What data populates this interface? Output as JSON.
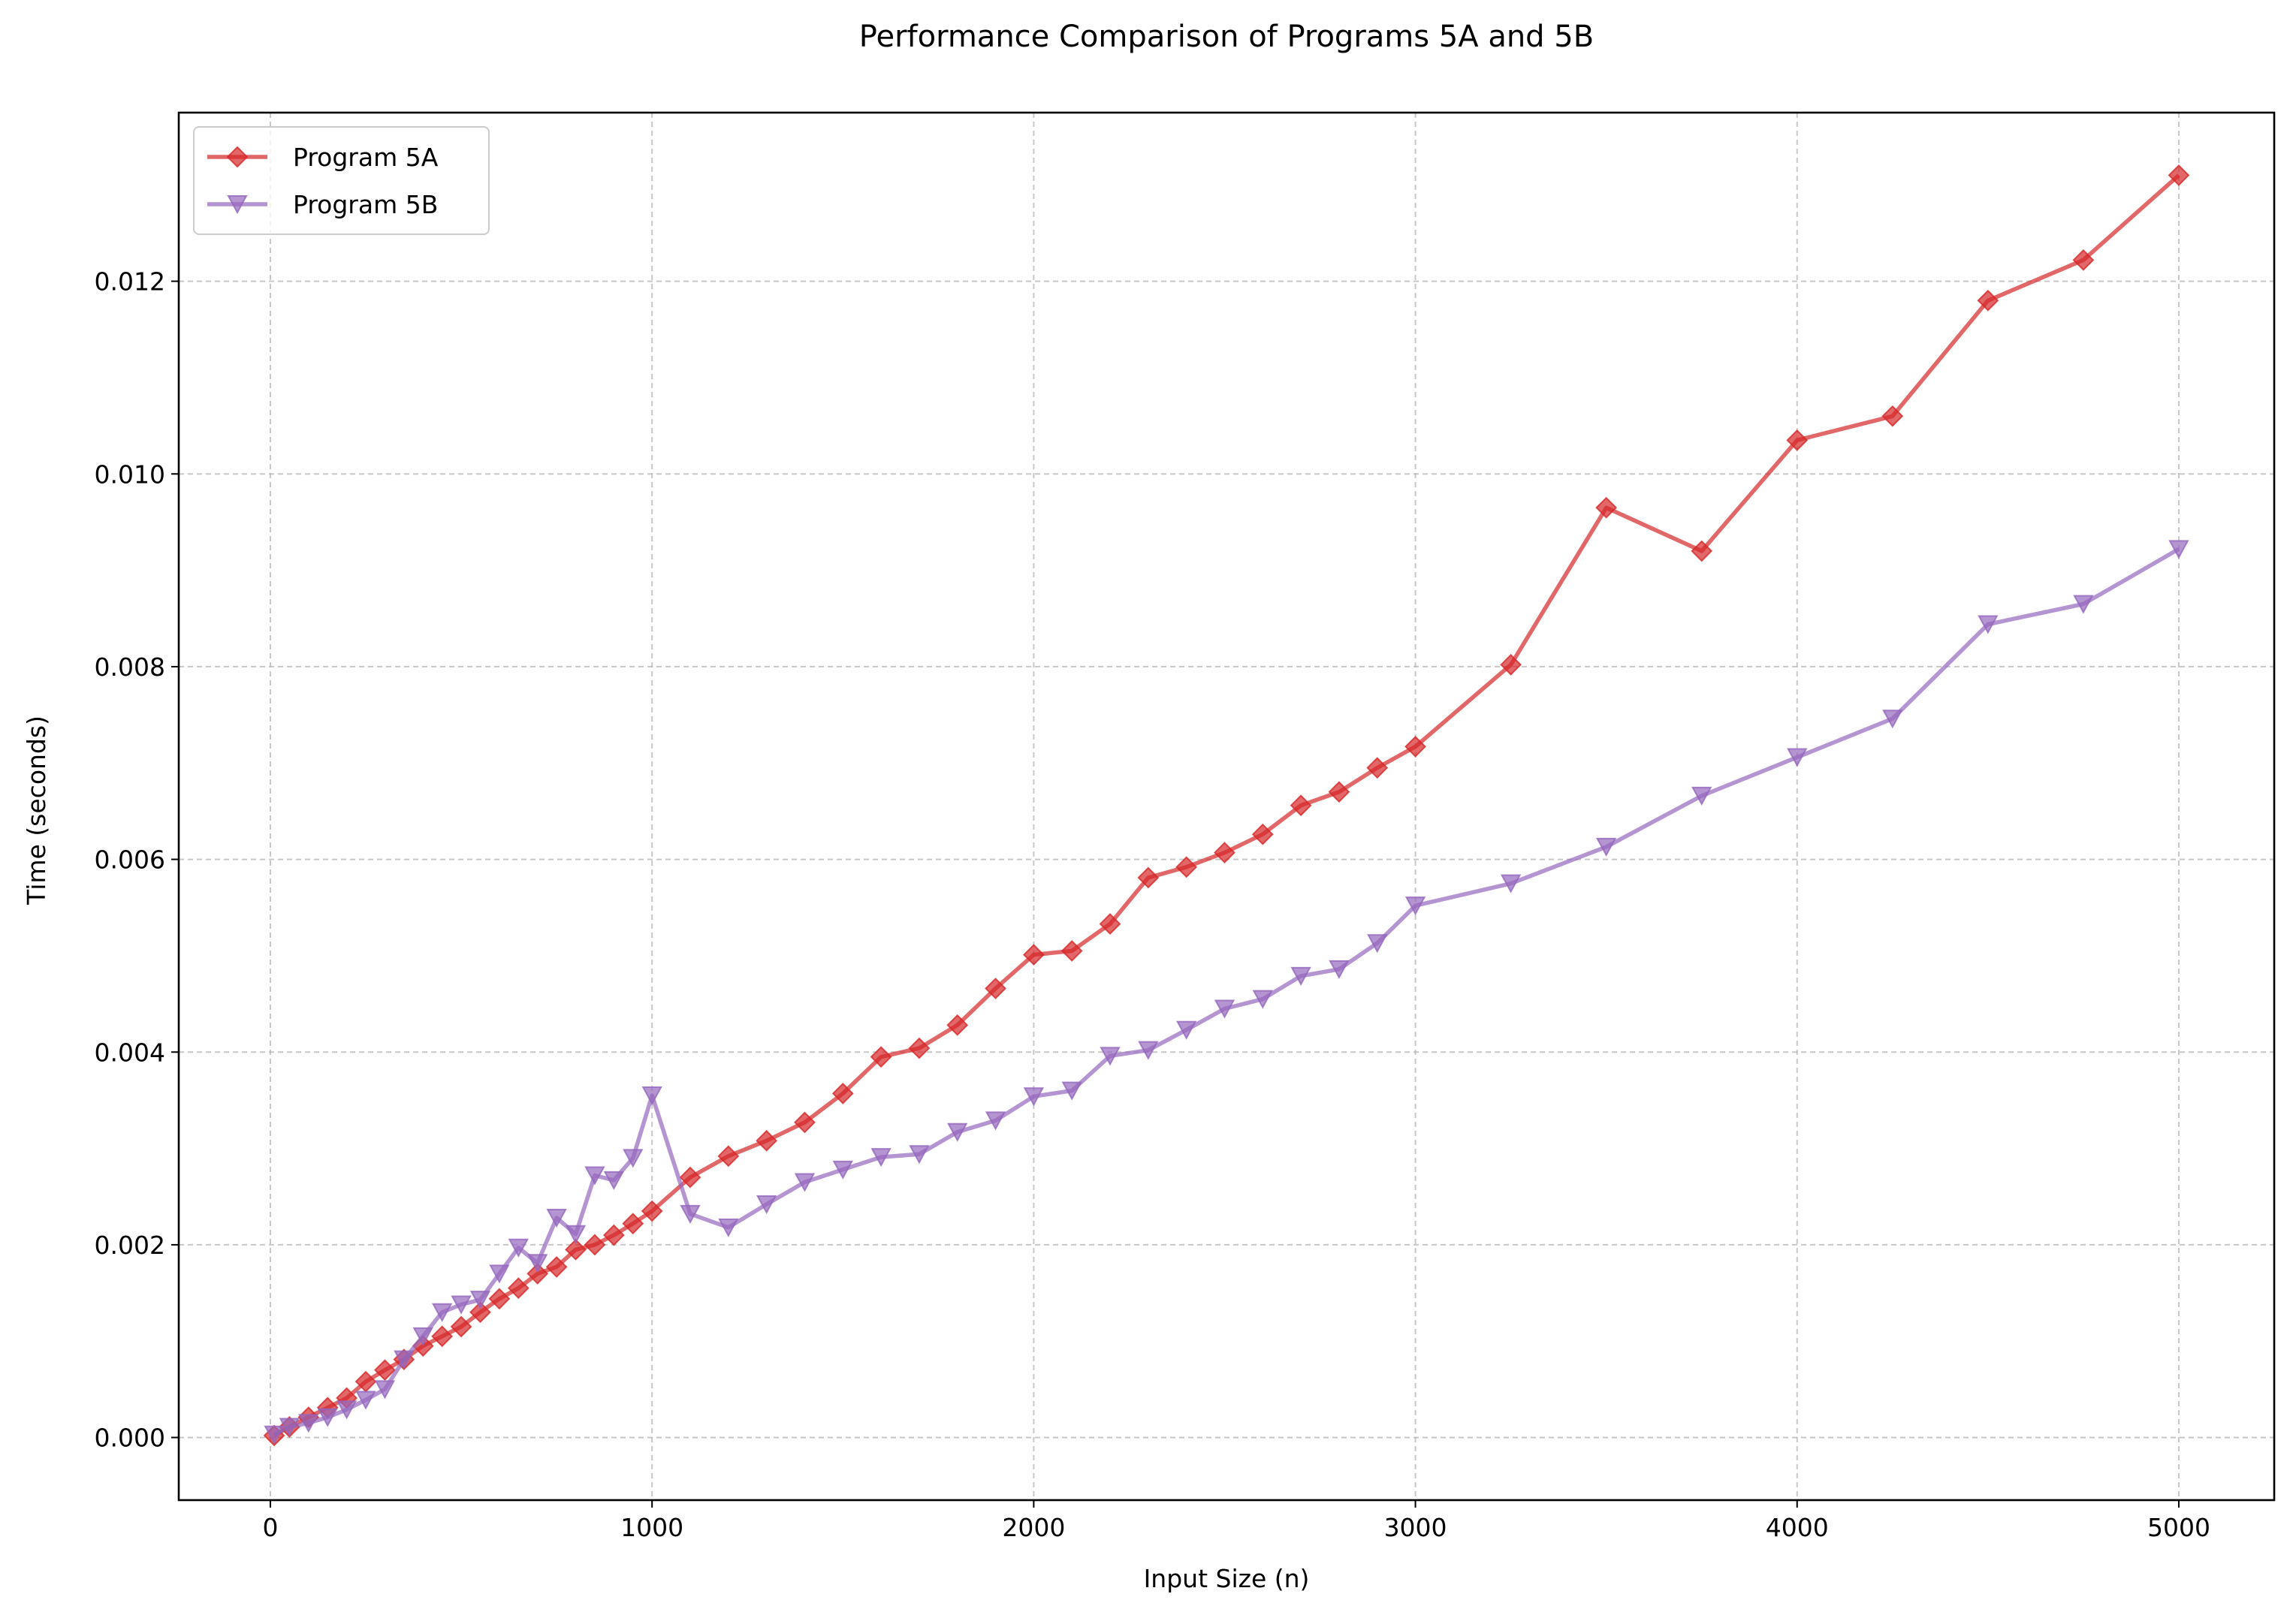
{
  "chart_data": {
    "type": "line",
    "title": "Performance Comparison of Programs 5A and 5B",
    "xlabel": "Input Size (n)",
    "ylabel": "Time (seconds)",
    "xlim": [
      -240,
      5250
    ],
    "ylim": [
      -0.00065,
      0.01375
    ],
    "x_ticks": [
      0,
      1000,
      2000,
      3000,
      4000,
      5000
    ],
    "x_tick_labels": [
      "0",
      "1000",
      "2000",
      "3000",
      "4000",
      "5000"
    ],
    "y_ticks": [
      0.0,
      0.002,
      0.004,
      0.006,
      0.008,
      0.01,
      0.012
    ],
    "y_tick_labels": [
      "0.000",
      "0.002",
      "0.004",
      "0.006",
      "0.008",
      "0.010",
      "0.012"
    ],
    "grid": true,
    "legend_position": "top-left",
    "series": [
      {
        "name": "Program 5A",
        "color": "#d62728",
        "marker": "diamond",
        "x": [
          10,
          50,
          100,
          150,
          200,
          250,
          300,
          350,
          400,
          450,
          500,
          550,
          600,
          650,
          700,
          750,
          800,
          850,
          900,
          950,
          1000,
          1100,
          1200,
          1300,
          1400,
          1500,
          1600,
          1700,
          1800,
          1900,
          2000,
          2100,
          2200,
          2300,
          2400,
          2500,
          2600,
          2700,
          2800,
          2900,
          3000,
          3250,
          3500,
          3750,
          4000,
          4250,
          4500,
          4750,
          5000
        ],
        "y": [
          2e-05,
          0.00011,
          0.00021,
          0.00031,
          0.00041,
          0.00058,
          0.0007,
          0.00081,
          0.00095,
          0.00105,
          0.00115,
          0.0013,
          0.00144,
          0.00155,
          0.0017,
          0.00177,
          0.00195,
          0.002,
          0.0021,
          0.00222,
          0.00235,
          0.0027,
          0.00292,
          0.00308,
          0.00327,
          0.00357,
          0.00395,
          0.00404,
          0.00428,
          0.00466,
          0.00501,
          0.00505,
          0.00533,
          0.00581,
          0.00592,
          0.00607,
          0.00626,
          0.00656,
          0.0067,
          0.00695,
          0.00717,
          0.00802,
          0.00965,
          0.0092,
          0.01035,
          0.0106,
          0.0118,
          0.01222,
          0.0131
        ]
      },
      {
        "name": "Program 5B",
        "color": "#9467bd",
        "marker": "triangle-down",
        "x": [
          10,
          50,
          100,
          150,
          200,
          250,
          300,
          350,
          400,
          450,
          500,
          550,
          600,
          650,
          700,
          750,
          800,
          850,
          900,
          950,
          1000,
          1100,
          1200,
          1300,
          1400,
          1500,
          1600,
          1700,
          1800,
          1900,
          2000,
          2100,
          2200,
          2300,
          2400,
          2500,
          2600,
          2700,
          2800,
          2900,
          3000,
          3250,
          3500,
          3750,
          4000,
          4250,
          4500,
          4750,
          5000
        ],
        "y": [
          3e-05,
          0.00011,
          0.00015,
          0.00021,
          0.00029,
          0.00039,
          0.0005,
          0.00081,
          0.00105,
          0.0013,
          0.00138,
          0.00143,
          0.0017,
          0.00197,
          0.00181,
          0.00228,
          0.00211,
          0.00272,
          0.00267,
          0.0029,
          0.00355,
          0.00232,
          0.00218,
          0.00242,
          0.00265,
          0.00278,
          0.00291,
          0.00294,
          0.00317,
          0.00329,
          0.00354,
          0.0036,
          0.00396,
          0.00402,
          0.00423,
          0.00445,
          0.00455,
          0.00479,
          0.00486,
          0.00513,
          0.00552,
          0.00575,
          0.00613,
          0.00666,
          0.00706,
          0.00746,
          0.00844,
          0.00865,
          0.00922
        ]
      }
    ]
  }
}
